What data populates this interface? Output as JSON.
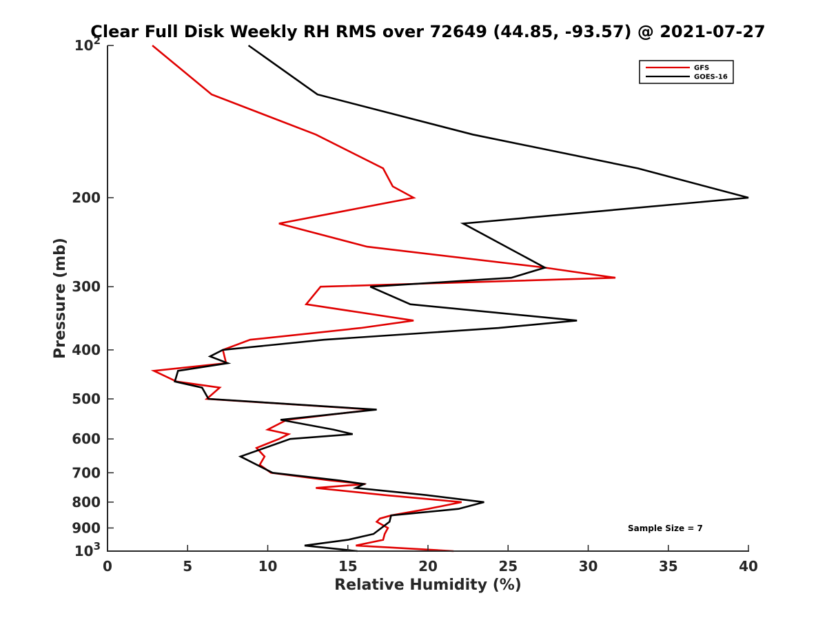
{
  "chart_data": {
    "type": "line",
    "title": "Clear Full Disk Weekly RH RMS over 72649 (44.85, -93.57) @ 2021-07-27",
    "xlabel": "Relative Humidity (%)",
    "ylabel": "Pressure (mb)",
    "xlim": [
      0,
      40
    ],
    "ylim": [
      100,
      1000
    ],
    "y_scale": "log",
    "y_reversed": true,
    "grid": false,
    "legend_position": "top-right",
    "x_ticks": [
      "0",
      "5",
      "10",
      "15",
      "20",
      "25",
      "30",
      "35",
      "40"
    ],
    "y_ticks": [
      {
        "value": 100,
        "base": "10",
        "exp": "2"
      },
      {
        "value": 200,
        "label": "200"
      },
      {
        "value": 300,
        "label": "300"
      },
      {
        "value": 400,
        "label": "400"
      },
      {
        "value": 500,
        "label": "500"
      },
      {
        "value": 600,
        "label": "600"
      },
      {
        "value": 700,
        "label": "700"
      },
      {
        "value": 800,
        "label": "800"
      },
      {
        "value": 900,
        "label": "900"
      },
      {
        "value": 1000,
        "base": "10",
        "exp": "3"
      }
    ],
    "annotation": "Sample Size = 7",
    "series": [
      {
        "name": "GFS",
        "color": "#e00000",
        "points": [
          [
            2.8,
            100
          ],
          [
            6.5,
            125
          ],
          [
            13,
            150
          ],
          [
            17.2,
            175
          ],
          [
            17.8,
            190
          ],
          [
            19.1,
            200
          ],
          [
            10.7,
            225
          ],
          [
            16.2,
            250
          ],
          [
            27.3,
            275
          ],
          [
            31.7,
            288
          ],
          [
            13.3,
            300
          ],
          [
            12.4,
            325
          ],
          [
            19.1,
            350
          ],
          [
            15.8,
            362
          ],
          [
            8.9,
            382
          ],
          [
            7.2,
            400
          ],
          [
            7.4,
            425
          ],
          [
            2.9,
            440
          ],
          [
            4.3,
            462
          ],
          [
            7,
            475
          ],
          [
            6.2,
            500
          ],
          [
            16.6,
            525
          ],
          [
            11.2,
            550
          ],
          [
            10,
            575
          ],
          [
            11.3,
            587
          ],
          [
            10.7,
            600
          ],
          [
            9.3,
            625
          ],
          [
            9.8,
            650
          ],
          [
            9.5,
            675
          ],
          [
            10.2,
            700
          ],
          [
            13.9,
            725
          ],
          [
            16.1,
            737
          ],
          [
            13,
            750
          ],
          [
            17.3,
            775
          ],
          [
            22.1,
            800
          ],
          [
            20,
            825
          ],
          [
            17.7,
            850
          ],
          [
            17,
            862
          ],
          [
            16.8,
            875
          ],
          [
            17.5,
            900
          ],
          [
            17.3,
            925
          ],
          [
            17.2,
            950
          ],
          [
            15.5,
            975
          ],
          [
            21.6,
            1000
          ]
        ]
      },
      {
        "name": "GOES-16",
        "color": "#000000",
        "points": [
          [
            8.8,
            100
          ],
          [
            13.1,
            125
          ],
          [
            22.8,
            150
          ],
          [
            33.1,
            175
          ],
          [
            40,
            200
          ],
          [
            22.2,
            225
          ],
          [
            27.3,
            275
          ],
          [
            25.2,
            288
          ],
          [
            16.4,
            300
          ],
          [
            18.9,
            325
          ],
          [
            29.3,
            350
          ],
          [
            24.4,
            362
          ],
          [
            13.5,
            382
          ],
          [
            7.2,
            400
          ],
          [
            6.4,
            412
          ],
          [
            7.5,
            425
          ],
          [
            4.4,
            440
          ],
          [
            4.2,
            462
          ],
          [
            5.9,
            475
          ],
          [
            6.3,
            500
          ],
          [
            16.8,
            525
          ],
          [
            10.8,
            550
          ],
          [
            14.1,
            575
          ],
          [
            15.3,
            587
          ],
          [
            11.4,
            600
          ],
          [
            8.3,
            650
          ],
          [
            10.3,
            700
          ],
          [
            14.5,
            725
          ],
          [
            16,
            737
          ],
          [
            15.5,
            750
          ],
          [
            19.9,
            775
          ],
          [
            23.5,
            800
          ],
          [
            21.9,
            825
          ],
          [
            17.7,
            850
          ],
          [
            17.6,
            875
          ],
          [
            16.6,
            925
          ],
          [
            15,
            950
          ],
          [
            12.3,
            975
          ],
          [
            15.6,
            1000
          ]
        ]
      }
    ]
  }
}
